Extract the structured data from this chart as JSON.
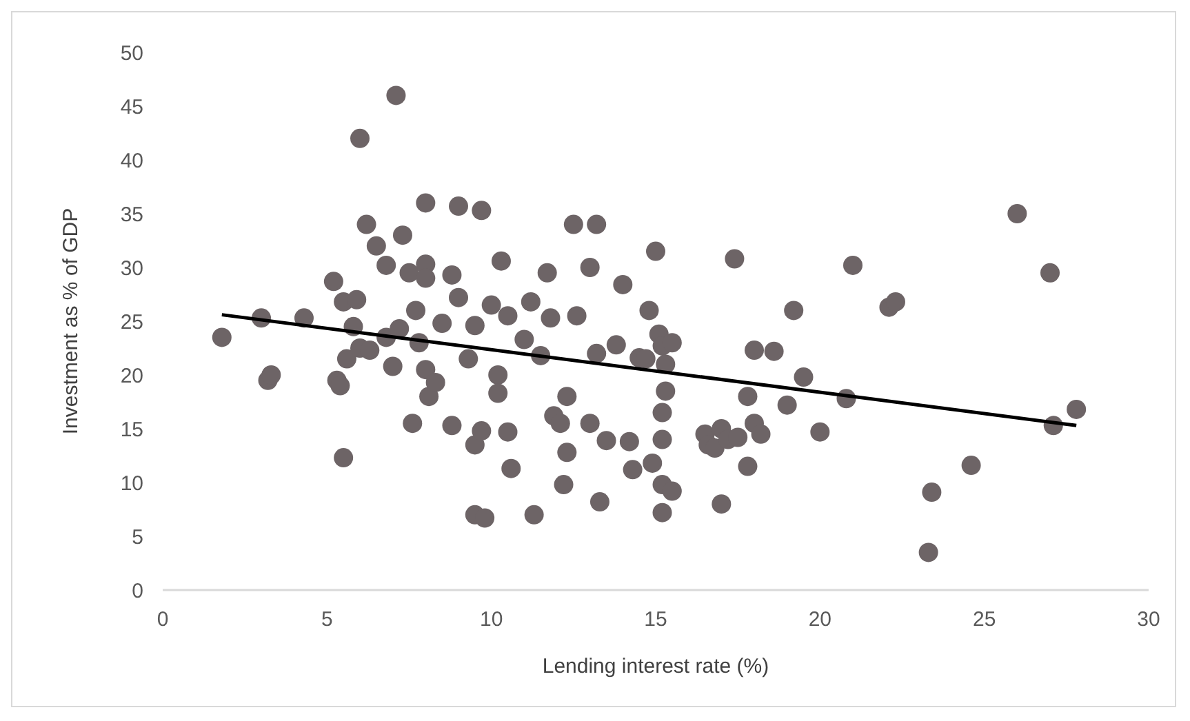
{
  "chart_data": {
    "type": "scatter",
    "xlabel": "Lending interest rate (%)",
    "ylabel": "Investment as % of GDP",
    "xlim": [
      0,
      30
    ],
    "xticks": [
      0,
      5,
      10,
      15,
      20,
      25,
      30
    ],
    "ylim": [
      0,
      50
    ],
    "yticks": [
      0,
      5,
      10,
      15,
      20,
      25,
      30,
      35,
      40,
      45,
      50
    ],
    "grid": false,
    "marker": "circle",
    "series": [
      {
        "color": "#6d6466",
        "x": [
          1.8,
          3,
          3.2,
          3.3,
          4.3,
          5.2,
          5.3,
          5.4,
          5.5,
          5.5,
          5.6,
          5.8,
          5.9,
          6,
          6,
          6.2,
          6.3,
          6.5,
          6.8,
          6.8,
          7,
          7.1,
          7.2,
          7.3,
          7.5,
          7.6,
          7.7,
          7.8,
          8,
          8,
          8,
          8,
          8.1,
          8.3,
          8.5,
          8.8,
          8.8,
          9,
          9,
          9.3,
          9.5,
          9.5,
          9.5,
          9.7,
          9.7,
          9.8,
          10,
          10.2,
          10.2,
          10.3,
          10.5,
          10.5,
          10.6,
          11,
          11.2,
          11.3,
          11.5,
          11.7,
          11.8,
          11.9,
          12.1,
          12.2,
          12.3,
          12.3,
          12.5,
          12.6,
          13,
          13,
          13.2,
          13.2,
          13.3,
          13.5,
          13.8,
          14,
          14.2,
          14.3,
          14.5,
          14.7,
          14.8,
          14.9,
          15,
          15.1,
          15.2,
          15.3,
          15.3,
          15.2,
          15.2,
          15.2,
          15.2,
          15.5,
          15.5,
          16.5,
          16.6,
          16.8,
          17,
          17,
          17.2,
          17.4,
          17.5,
          17.8,
          17.8,
          18,
          18,
          18.2,
          18.6,
          19,
          19.2,
          19.5,
          20,
          20.8,
          21,
          22.1,
          22.3,
          23.3,
          23.4,
          24.6,
          26,
          27,
          27.1,
          27.8
        ],
        "values": [
          23.5,
          25.3,
          19.5,
          20,
          25.3,
          28.7,
          19.5,
          19,
          12.3,
          26.8,
          21.5,
          24.5,
          27,
          22.5,
          42,
          34,
          22.3,
          32,
          30.2,
          23.5,
          20.8,
          46,
          24.3,
          33,
          29.5,
          15.5,
          26,
          23,
          30.3,
          29,
          36,
          20.5,
          18,
          19.3,
          24.8,
          15.3,
          29.3,
          35.7,
          27.2,
          21.5,
          13.5,
          24.6,
          7,
          35.3,
          14.8,
          6.7,
          26.5,
          20,
          18.3,
          30.6,
          25.5,
          14.7,
          11.3,
          23.3,
          26.8,
          7,
          21.8,
          29.5,
          25.3,
          16.2,
          15.5,
          9.8,
          12.8,
          18,
          34,
          25.5,
          30,
          15.5,
          34,
          22,
          8.2,
          13.9,
          22.8,
          28.4,
          13.8,
          11.2,
          21.6,
          21.5,
          26,
          11.8,
          31.5,
          23.8,
          22.7,
          21,
          18.5,
          16.5,
          14,
          9.8,
          7.2,
          23,
          9.2,
          14.5,
          13.5,
          13.2,
          15,
          8,
          14,
          30.8,
          14.2,
          11.5,
          18,
          22.3,
          15.5,
          14.5,
          22.2,
          17.2,
          26,
          19.8,
          14.7,
          17.8,
          30.2,
          26.3,
          26.8,
          3.5,
          9.1,
          11.6,
          35,
          29.5,
          15.3,
          16.8
        ]
      },
      {
        "type": "line",
        "color": "#000000",
        "marker": "none",
        "x": [
          1.8,
          27.8
        ],
        "values": [
          25.6,
          15.3
        ]
      }
    ]
  }
}
